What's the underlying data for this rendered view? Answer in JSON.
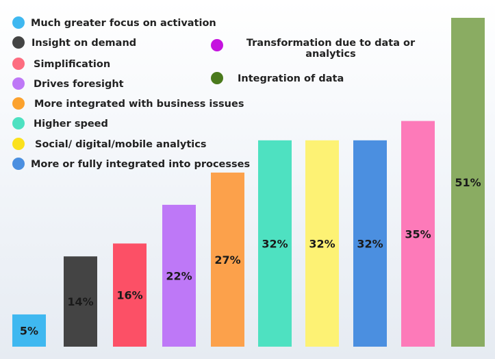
{
  "chart_data": {
    "type": "bar",
    "categories": [
      "Much greater focus on activation",
      "Insight on demand",
      "Simplification",
      "Drives foresight",
      "More integrated with business issues",
      "Higher speed",
      "Social/ digital/mobile analytics",
      "More or fully integrated into processes",
      "Transformation due to data or analytics",
      "Integration of data"
    ],
    "values": [
      5,
      14,
      16,
      22,
      27,
      32,
      32,
      32,
      35,
      51
    ],
    "value_labels": [
      "5%",
      "14%",
      "16%",
      "22%",
      "27%",
      "32%",
      "32%",
      "32%",
      "35%",
      "51%"
    ],
    "colors": [
      "#3fb8f0",
      "#444444",
      "#fc5066",
      "#be78f7",
      "#fca14b",
      "#4ee1c1",
      "#fdf274",
      "#4b8fe0",
      "#fd7ab9",
      "#8aac62"
    ],
    "legend_colors": [
      "#3fb8f0",
      "#444444",
      "#fd6d80",
      "#be78f7",
      "#fca22e",
      "#4ee1c1",
      "#fbe11d",
      "#4b8fe0",
      "#c513df",
      "#4a7a1c"
    ],
    "legend": {
      "left": [
        "Much greater focus on activation",
        "Insight on demand",
        "Simplification",
        "Drives foresight",
        "More integrated with business issues",
        "Higher speed",
        "Social/ digital/mobile analytics",
        "More or fully integrated into processes"
      ],
      "right": [
        [
          "Transformation due to data or",
          "analytics"
        ],
        [
          "Integration of data"
        ]
      ]
    },
    "ylim": [
      0,
      51
    ],
    "grid": false
  }
}
